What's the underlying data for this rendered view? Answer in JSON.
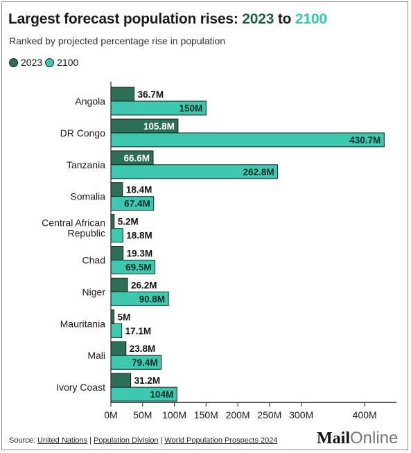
{
  "title": {
    "prefix": "Largest forecast population rises:",
    "year_a": "2023",
    "connector": "to",
    "year_b": "2100"
  },
  "subtitle": "Ranked by projected percentage rise in population",
  "legend": [
    {
      "label": "2023",
      "color": "#2d6e57"
    },
    {
      "label": "2100",
      "color": "#3cc9b0"
    }
  ],
  "footer": {
    "source_label": "Source:",
    "links": [
      "United Nations",
      "Population Division",
      "World Population Prospects 2024"
    ],
    "separator": "|"
  },
  "logo": {
    "mail": "Mail",
    "online": "Online"
  },
  "colors": {
    "series_2023": "#2d6e57",
    "series_2100": "#3cc9b0",
    "bar_stroke": "#1a1a1a",
    "axis": "#222222"
  },
  "chart_data": {
    "type": "bar",
    "orientation": "horizontal",
    "categories": [
      "Angola",
      "DR Congo",
      "Tanzania",
      "Somalia",
      "Central African Republic",
      "Chad",
      "Niger",
      "Mauritania",
      "Mali",
      "Ivory Coast"
    ],
    "series": [
      {
        "name": "2023",
        "values": [
          36.7,
          105.8,
          66.6,
          18.4,
          5.2,
          19.3,
          26.2,
          5,
          23.8,
          31.2
        ],
        "labels": [
          "36.7M",
          "105.8M",
          "66.6M",
          "18.4M",
          "5.2M",
          "19.3M",
          "26.2M",
          "5M",
          "23.8M",
          "31.2M"
        ]
      },
      {
        "name": "2100",
        "values": [
          150,
          430.7,
          262.8,
          67.4,
          18.8,
          69.5,
          90.8,
          17.1,
          79.4,
          104
        ],
        "labels": [
          "150M",
          "430.7M",
          "262.8M",
          "67.4M",
          "18.8M",
          "69.5M",
          "90.8M",
          "17.1M",
          "79.4M",
          "104M"
        ]
      }
    ],
    "xticks": [
      0,
      50,
      100,
      150,
      200,
      250,
      300,
      400
    ],
    "xtick_labels": [
      "0M",
      "50M",
      "100M",
      "150M",
      "200M",
      "250M",
      "300M",
      "400M"
    ],
    "xlim": [
      0,
      450
    ],
    "xlabel": "",
    "ylabel": "",
    "grid": false,
    "legend_position": "top-left"
  }
}
